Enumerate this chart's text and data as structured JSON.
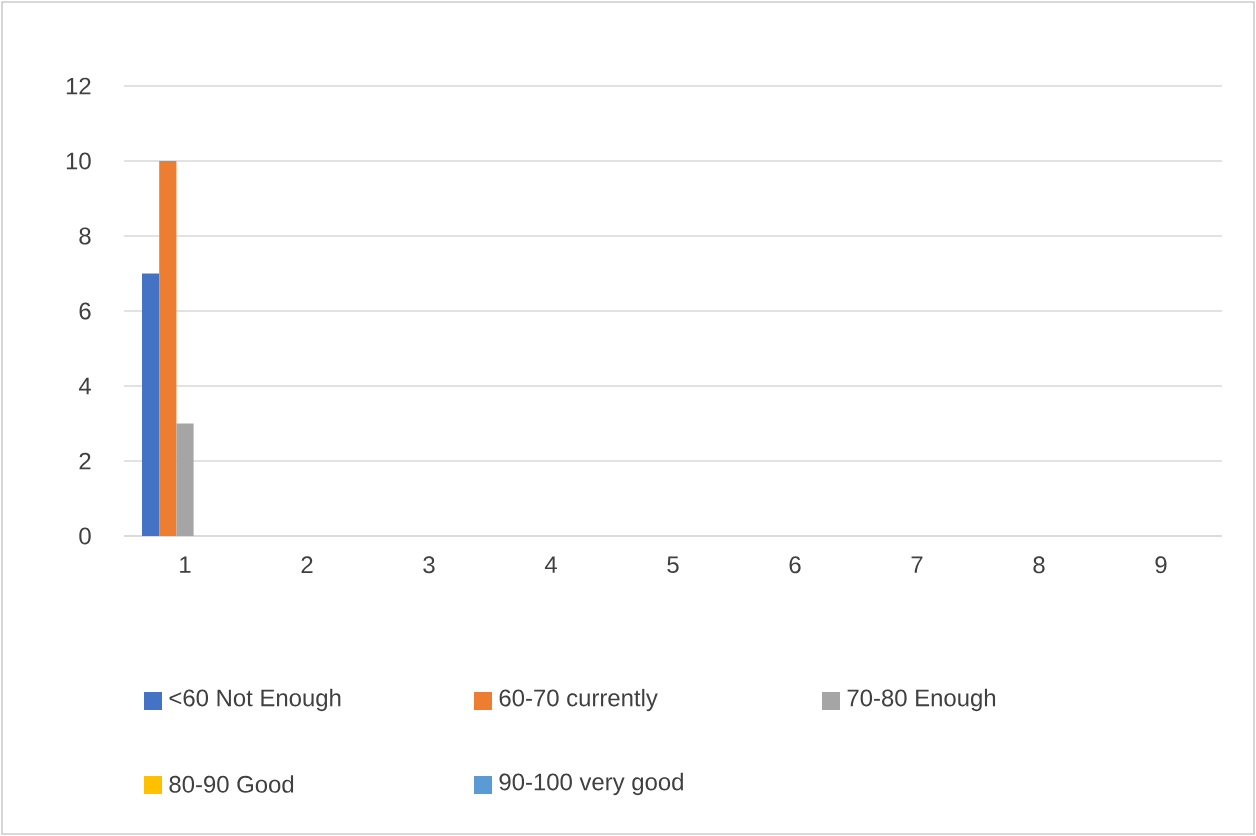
{
  "chart_data": {
    "type": "bar",
    "categories": [
      "1",
      "2",
      "3",
      "4",
      "5",
      "6",
      "7",
      "8",
      "9"
    ],
    "series": [
      {
        "name": "<60 Not Enough",
        "color": "#4472c4",
        "values": [
          7,
          null,
          null,
          null,
          null,
          null,
          null,
          null,
          null
        ]
      },
      {
        "name": "60-70 currently",
        "color": "#ed7d31",
        "values": [
          10,
          null,
          null,
          null,
          null,
          null,
          null,
          null,
          null
        ]
      },
      {
        "name": "70-80 Enough",
        "color": "#a5a5a5",
        "values": [
          3,
          null,
          null,
          null,
          null,
          null,
          null,
          null,
          null
        ]
      },
      {
        "name": "80-90 Good",
        "color": "#ffc000",
        "values": [
          null,
          null,
          null,
          null,
          null,
          null,
          null,
          null,
          null
        ]
      },
      {
        "name": "90-100 very good",
        "color": "#5b9bd5",
        "values": [
          null,
          null,
          null,
          null,
          null,
          null,
          null,
          null,
          null
        ]
      }
    ],
    "ylim": [
      0,
      12
    ],
    "yticks": [
      0,
      2,
      4,
      6,
      8,
      10,
      12
    ],
    "grid": "y",
    "legend": "bottom"
  }
}
